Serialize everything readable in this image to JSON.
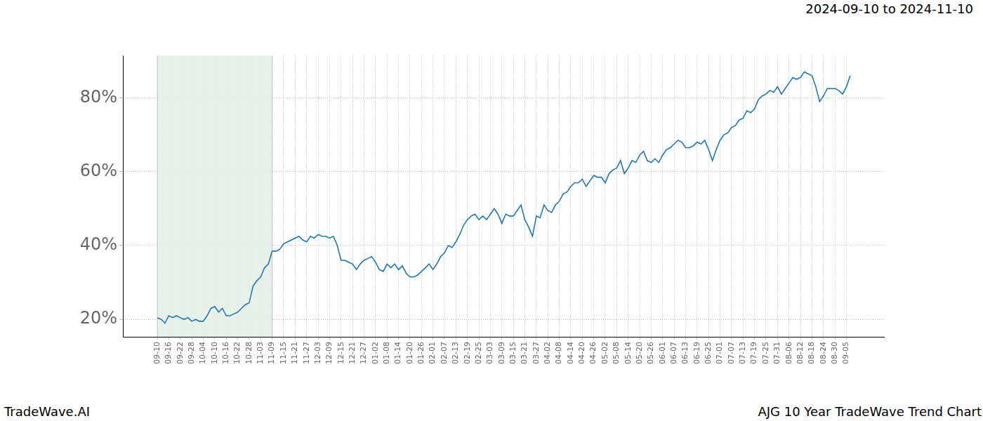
{
  "chart_data": {
    "type": "line",
    "title": "2024-09-10 to 2024-11-10",
    "watermark": "TradeWave.AI",
    "caption": "AJG 10 Year TradeWave Trend Chart",
    "highlight": {
      "start": "09-10",
      "end": "11-09",
      "color": "#e6f0e6"
    },
    "categories": [
      "09-10",
      null,
      null,
      "09-16",
      null,
      null,
      "09-22",
      null,
      null,
      "09-28",
      null,
      null,
      "10-04",
      null,
      null,
      "10-10",
      null,
      null,
      "10-16",
      null,
      null,
      "10-22",
      null,
      null,
      "10-28",
      null,
      null,
      "11-03",
      null,
      null,
      "11-09",
      null,
      null,
      "11-15",
      null,
      null,
      "11-21",
      null,
      null,
      "11-27",
      null,
      null,
      "12-03",
      null,
      null,
      "12-09",
      null,
      null,
      "12-15",
      null,
      null,
      "12-21",
      null,
      null,
      "12-27",
      null,
      null,
      "01-02",
      null,
      null,
      "01-08",
      null,
      null,
      "01-14",
      null,
      null,
      "01-20",
      null,
      null,
      "01-26",
      null,
      null,
      "02-01",
      null,
      null,
      "02-07",
      null,
      null,
      "02-13",
      null,
      null,
      "02-19",
      null,
      null,
      "02-25",
      null,
      null,
      "03-03",
      null,
      null,
      "03-09",
      null,
      null,
      "03-15",
      null,
      null,
      "03-21",
      null,
      null,
      "03-27",
      null,
      null,
      "04-02",
      null,
      null,
      "04-08",
      null,
      null,
      "04-14",
      null,
      null,
      "04-20",
      null,
      null,
      "04-26",
      null,
      null,
      "05-02",
      null,
      null,
      "05-08",
      null,
      null,
      "05-14",
      null,
      null,
      "05-20",
      null,
      null,
      "05-26",
      null,
      null,
      "06-01",
      null,
      null,
      "06-07",
      null,
      null,
      "06-13",
      null,
      null,
      "06-19",
      null,
      null,
      "06-25",
      null,
      null,
      "07-01",
      null,
      null,
      "07-07",
      null,
      null,
      "07-13",
      null,
      null,
      "07-19",
      null,
      null,
      "07-25",
      null,
      null,
      "07-31",
      null,
      null,
      "08-06",
      null,
      null,
      "08-12",
      null,
      null,
      "08-18",
      null,
      null,
      "08-24",
      null,
      null,
      "08-30",
      null,
      null,
      "09-05",
      null
    ],
    "values": [
      20.5,
      20,
      19,
      21,
      20.5,
      21,
      20.5,
      20,
      20.5,
      19.5,
      20,
      19.5,
      19.5,
      21,
      23,
      23.5,
      22,
      23,
      21,
      21,
      21.5,
      22,
      23,
      24,
      24.5,
      29,
      30.5,
      31.5,
      34,
      35,
      38.5,
      38.5,
      39,
      40.5,
      41,
      41.5,
      42,
      42.5,
      41.5,
      41,
      42.5,
      42,
      43,
      42.5,
      42.5,
      42,
      42.5,
      40,
      36,
      36,
      35.5,
      35,
      33.5,
      35,
      36,
      36.5,
      37,
      35.5,
      33.5,
      33,
      35,
      34,
      35,
      33.5,
      34.5,
      32.5,
      31.5,
      31.5,
      32,
      33,
      34,
      35,
      33.5,
      35,
      37,
      38,
      40,
      39.5,
      41,
      43,
      45.5,
      47,
      48,
      48.5,
      47,
      48,
      47,
      48.5,
      50,
      48.5,
      46,
      48.5,
      48,
      48,
      49.5,
      51,
      47,
      45,
      42.5,
      48,
      47.5,
      51,
      49.5,
      49,
      51,
      52,
      54,
      54.5,
      56,
      57,
      57,
      58,
      56,
      57.5,
      59,
      58.5,
      58.5,
      57,
      59.5,
      60.5,
      61,
      63,
      59.5,
      61,
      63,
      62.5,
      64.5,
      65.5,
      63,
      62.5,
      63.5,
      62.5,
      64.5,
      66,
      66.5,
      67.5,
      68.5,
      68,
      66.5,
      66.5,
      67,
      68,
      67.5,
      68.5,
      66,
      63,
      66,
      68.5,
      70,
      70.5,
      72,
      72.5,
      74,
      74.5,
      76.5,
      76,
      77,
      79.5,
      80.5,
      81,
      82,
      81.5,
      83,
      81,
      82.5,
      84,
      85.5,
      85,
      85.5,
      87,
      86.5,
      86,
      83,
      79,
      80.5,
      82.5,
      82.5,
      82.5,
      82,
      81,
      83,
      86
    ],
    "color": "#1f77b4",
    "ylim": [
      15.3,
      91.4
    ],
    "yticks": [
      {
        "value": 20,
        "label": "20%"
      },
      {
        "value": 40,
        "label": "40%"
      },
      {
        "value": 60,
        "label": "60%"
      },
      {
        "value": 80,
        "label": "80%"
      }
    ],
    "grid": true
  }
}
